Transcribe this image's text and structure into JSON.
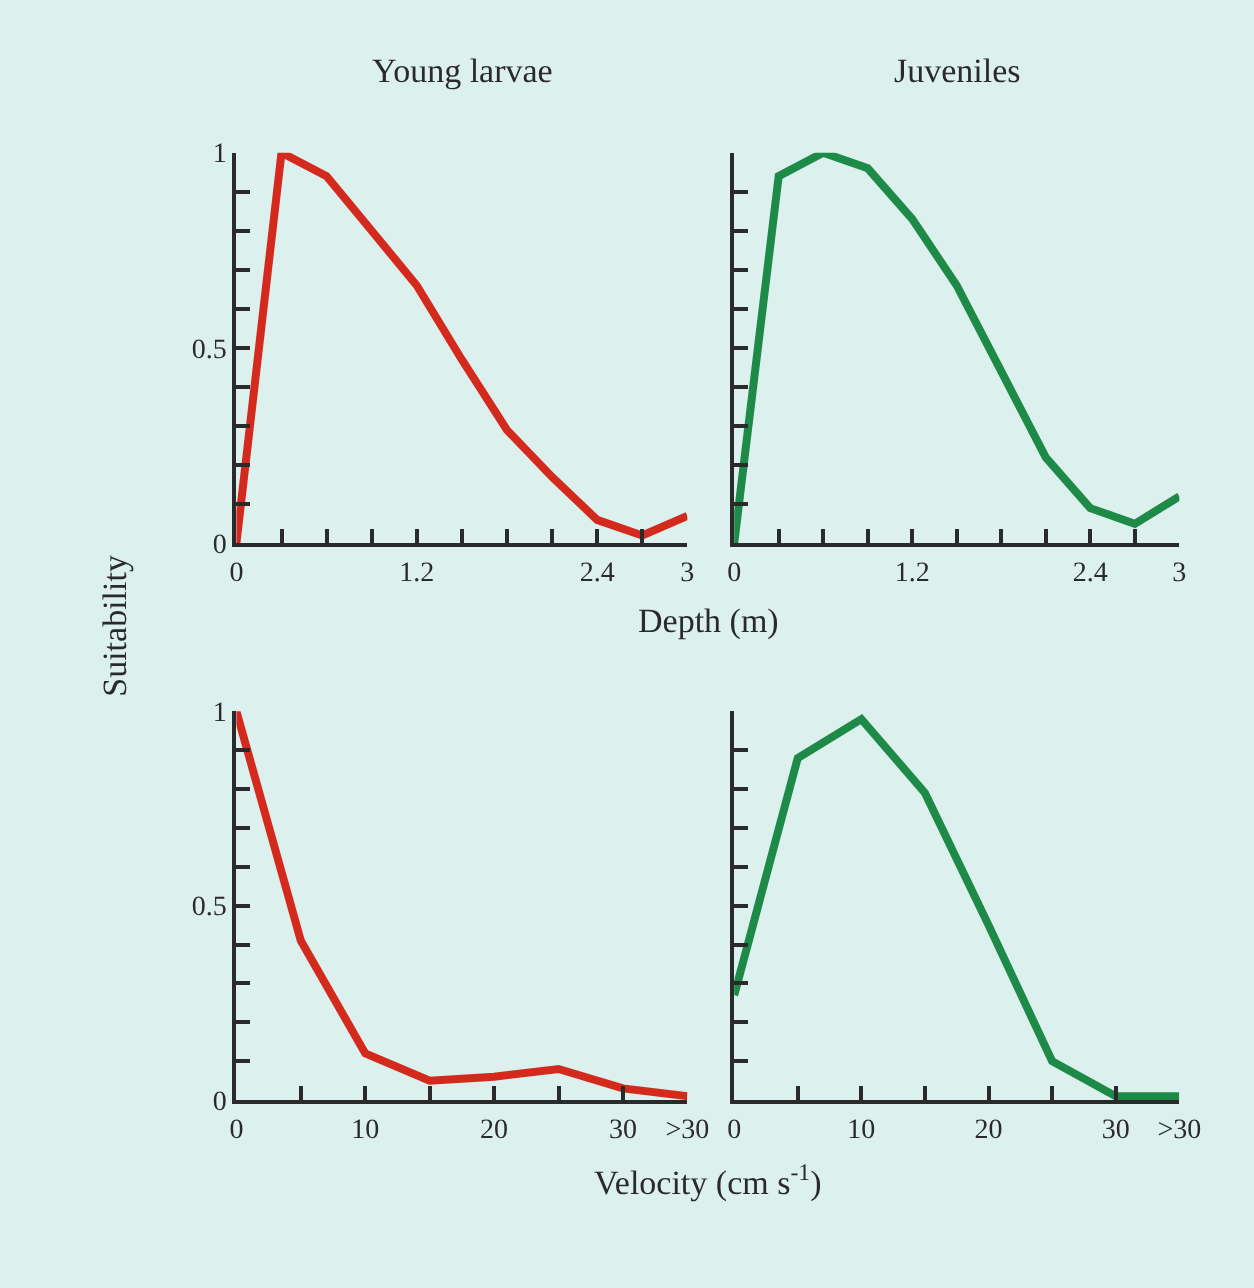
{
  "chart_data": [
    {
      "type": "line",
      "title": "Young larvae",
      "ylabel": "Suitability",
      "xlabel": "Depth (m)",
      "x": [
        0,
        0.3,
        0.6,
        0.9,
        1.2,
        1.5,
        1.8,
        2.1,
        2.4,
        2.7,
        3
      ],
      "series": [
        {
          "color": "#d42a1e",
          "values": [
            0,
            1.0,
            0.94,
            0.8,
            0.66,
            0.47,
            0.29,
            0.17,
            0.06,
            0.02,
            0.07
          ]
        }
      ],
      "xlim": [
        0,
        3
      ],
      "xticks": [
        0,
        {
          "value": 0.3,
          "label": null
        },
        {
          "value": 0.6,
          "label": null
        },
        {
          "value": 0.9,
          "label": null
        },
        1.2,
        {
          "value": 1.5,
          "label": null
        },
        {
          "value": 1.8,
          "label": null
        },
        {
          "value": 2.1,
          "label": null
        },
        2.4,
        {
          "value": 2.7,
          "label": null
        },
        3
      ],
      "ylim": [
        0,
        1
      ],
      "yticks": [
        0,
        {
          "value": 0.1,
          "label": null
        },
        {
          "value": 0.2,
          "label": null
        },
        {
          "value": 0.3,
          "label": null
        },
        {
          "value": 0.4,
          "label": null
        },
        0.5,
        {
          "value": 0.6,
          "label": null
        },
        {
          "value": 0.7,
          "label": null
        },
        {
          "value": 0.8,
          "label": null
        },
        {
          "value": 0.9,
          "label": null
        },
        1
      ],
      "grid": false,
      "marker": "none",
      "line_style": "solid"
    },
    {
      "type": "line",
      "title": "Juveniles",
      "x": [
        0,
        0.3,
        0.6,
        0.9,
        1.2,
        1.5,
        1.8,
        2.1,
        2.4,
        2.7,
        3
      ],
      "series": [
        {
          "color": "#1e8a48",
          "values": [
            0,
            0.94,
            1.0,
            0.96,
            0.83,
            0.66,
            0.44,
            0.22,
            0.09,
            0.05,
            0.12
          ]
        }
      ],
      "xlim": [
        0,
        3
      ],
      "xticks": [
        0,
        {
          "value": 0.3,
          "label": null
        },
        {
          "value": 0.6,
          "label": null
        },
        {
          "value": 0.9,
          "label": null
        },
        1.2,
        {
          "value": 1.5,
          "label": null
        },
        {
          "value": 1.8,
          "label": null
        },
        {
          "value": 2.1,
          "label": null
        },
        2.4,
        {
          "value": 2.7,
          "label": null
        },
        3
      ],
      "ylim": [
        0,
        1
      ],
      "yticks": [
        {
          "value": 0,
          "label": null
        },
        {
          "value": 0.1,
          "label": null
        },
        {
          "value": 0.2,
          "label": null
        },
        {
          "value": 0.3,
          "label": null
        },
        {
          "value": 0.4,
          "label": null
        },
        {
          "value": 0.5,
          "label": null
        },
        {
          "value": 0.6,
          "label": null
        },
        {
          "value": 0.7,
          "label": null
        },
        {
          "value": 0.8,
          "label": null
        },
        {
          "value": 0.9,
          "label": null
        },
        {
          "value": 1,
          "label": null
        }
      ],
      "tick_labels": "x",
      "grid": false,
      "marker": "none",
      "line_style": "solid"
    },
    {
      "type": "line",
      "xlabel": "Velocity (cm s$^{-1}$)",
      "x": [
        0,
        5,
        10,
        15,
        20,
        25,
        30,
        35
      ],
      "series": [
        {
          "color": "#d42a1e",
          "values": [
            1.0,
            0.41,
            0.12,
            0.05,
            0.06,
            0.08,
            0.03,
            0.01
          ]
        }
      ],
      "xlim": [
        0,
        35
      ],
      "xticks": [
        0,
        {
          "value": 5,
          "label": null
        },
        10,
        {
          "value": 15,
          "label": null
        },
        20,
        {
          "value": 25,
          "label": null
        },
        30,
        {
          "value": 35,
          "label": ">30"
        }
      ],
      "ylim": [
        0,
        1
      ],
      "yticks": [
        0,
        {
          "value": 0.1,
          "label": null
        },
        {
          "value": 0.2,
          "label": null
        },
        {
          "value": 0.3,
          "label": null
        },
        {
          "value": 0.4,
          "label": null
        },
        0.5,
        {
          "value": 0.6,
          "label": null
        },
        {
          "value": 0.7,
          "label": null
        },
        {
          "value": 0.8,
          "label": null
        },
        {
          "value": 0.9,
          "label": null
        },
        1
      ],
      "grid": false,
      "marker": "none",
      "line_style": "solid"
    },
    {
      "type": "line",
      "x": [
        0,
        5,
        10,
        15,
        20,
        25,
        30,
        35
      ],
      "series": [
        {
          "color": "#1e8a48",
          "values": [
            0.27,
            0.88,
            0.98,
            0.79,
            0.45,
            0.1,
            0.01,
            0.01
          ]
        }
      ],
      "xlim": [
        0,
        35
      ],
      "xticks": [
        0,
        {
          "value": 5,
          "label": null
        },
        10,
        {
          "value": 15,
          "label": null
        },
        20,
        {
          "value": 25,
          "label": null
        },
        30,
        {
          "value": 35,
          "label": ">30"
        }
      ],
      "ylim": [
        0,
        1
      ],
      "yticks": [
        {
          "value": 0,
          "label": null
        },
        {
          "value": 0.1,
          "label": null
        },
        {
          "value": 0.2,
          "label": null
        },
        {
          "value": 0.3,
          "label": null
        },
        {
          "value": 0.4,
          "label": null
        },
        {
          "value": 0.5,
          "label": null
        },
        {
          "value": 0.6,
          "label": null
        },
        {
          "value": 0.7,
          "label": null
        },
        {
          "value": 0.8,
          "label": null
        },
        {
          "value": 0.9,
          "label": null
        },
        {
          "value": 1,
          "label": null
        }
      ],
      "tick_labels": "x",
      "grid": false,
      "marker": "none",
      "line_style": "solid"
    }
  ]
}
